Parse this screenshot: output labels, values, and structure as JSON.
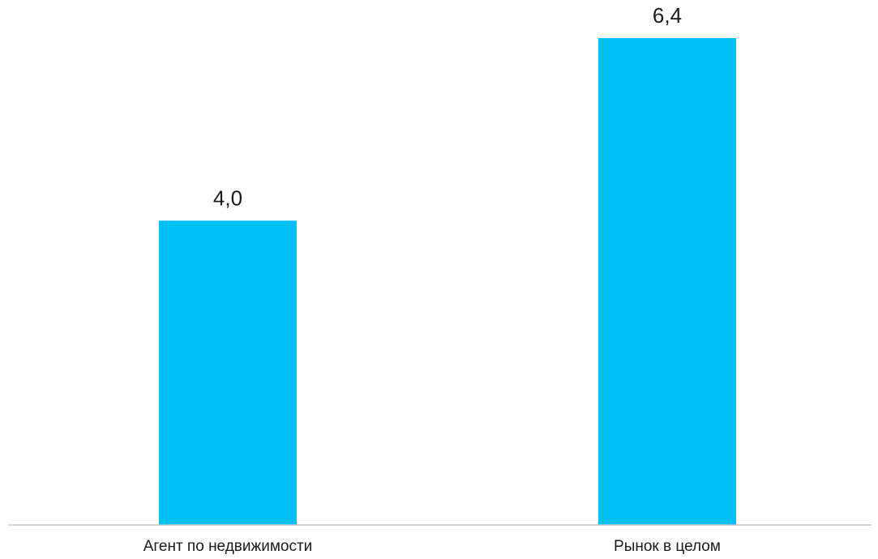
{
  "chart_data": {
    "type": "bar",
    "categories": [
      "Агент по недвижимости",
      "Рынок в целом"
    ],
    "values": [
      4.0,
      6.4
    ],
    "value_labels": [
      "4,0",
      "6,4"
    ],
    "title": "",
    "xlabel": "",
    "ylabel": "",
    "ylim": [
      0,
      6.4
    ],
    "grid": false,
    "legend": "none",
    "bar_color": "#00BFF3",
    "axis_color": "#c8c8c8"
  }
}
